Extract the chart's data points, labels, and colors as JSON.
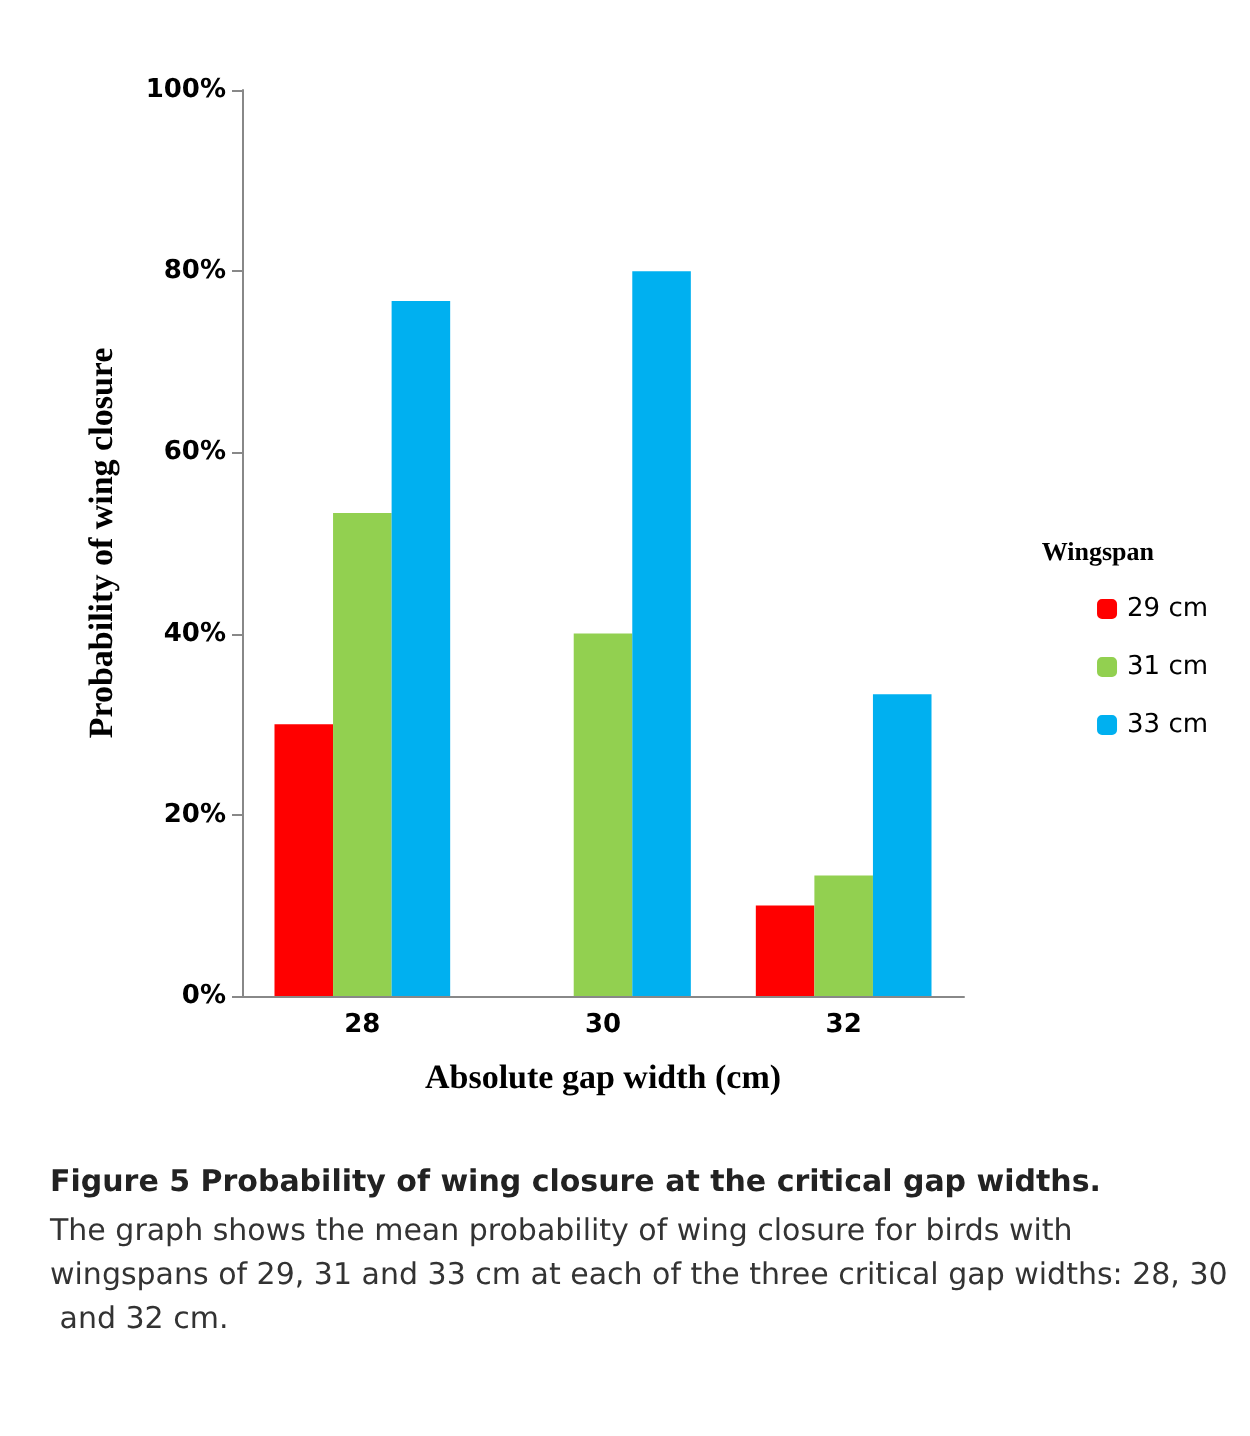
{
  "chart_data": {
    "type": "bar",
    "title": "Figure 5 Probability of wing closure at the critical gap widths.",
    "annotations": [
      "The graph shows the mean probability of wing closure for birds with wingspans of 29, 31 and 33 cm at each of the three critical gap widths: 28, 30 and 32 cm."
    ],
    "xlabel": "Absolute gap width (cm)",
    "ylabel": "Probability of wing closure",
    "legend_title": "Wingspan",
    "categories": [
      "28",
      "30",
      "32"
    ],
    "series": [
      {
        "name": "29 cm",
        "color": "#ff0000",
        "values": [
          30,
          0,
          10
        ]
      },
      {
        "name": "31 cm",
        "color": "#92d050",
        "values": [
          53.3,
          40,
          13.3
        ]
      },
      {
        "name": "33 cm",
        "color": "#00b0f0",
        "values": [
          76.7,
          80,
          33.3
        ]
      }
    ],
    "ylim": [
      0,
      100
    ],
    "yticks": [
      {
        "value": 0,
        "label": "0%"
      },
      {
        "value": 20,
        "label": "20%"
      },
      {
        "value": 40,
        "label": "40%"
      },
      {
        "value": 60,
        "label": "60%"
      },
      {
        "value": 80,
        "label": "80%"
      },
      {
        "value": 100,
        "label": "100%"
      }
    ],
    "grid": false,
    "legend": "right"
  }
}
